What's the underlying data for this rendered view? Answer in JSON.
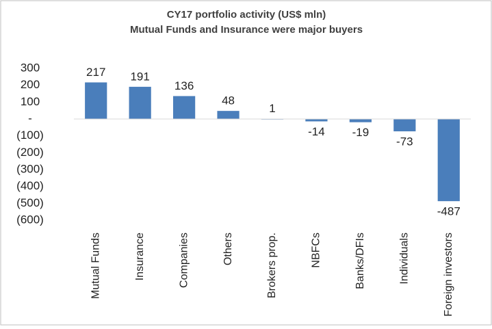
{
  "chart_data": {
    "type": "bar",
    "title": "CY17 portfolio activity (US$ mln)",
    "subtitle": "Mutual Funds and Insurance were major buyers",
    "categories": [
      "Mutual Funds",
      "Insurance",
      "Companies",
      "Others",
      "Brokers prop.",
      "NBFCs",
      "Banks/DFIs",
      "Individuals",
      "Foreign investors"
    ],
    "values": [
      217,
      191,
      136,
      48,
      1,
      -14,
      -19,
      -73,
      -487
    ],
    "color": "#4a7ebb",
    "ylim": [
      -600,
      300
    ],
    "yticks": [
      300,
      200,
      100,
      {
        "value": 0,
        "label": "-"
      },
      {
        "value": -100,
        "label": "(100)"
      },
      {
        "value": -200,
        "label": "(200)"
      },
      {
        "value": -300,
        "label": "(300)"
      },
      {
        "value": -400,
        "label": "(400)"
      },
      {
        "value": -500,
        "label": "(500)"
      },
      {
        "value": -600,
        "label": "(600)"
      }
    ],
    "grid": false
  }
}
